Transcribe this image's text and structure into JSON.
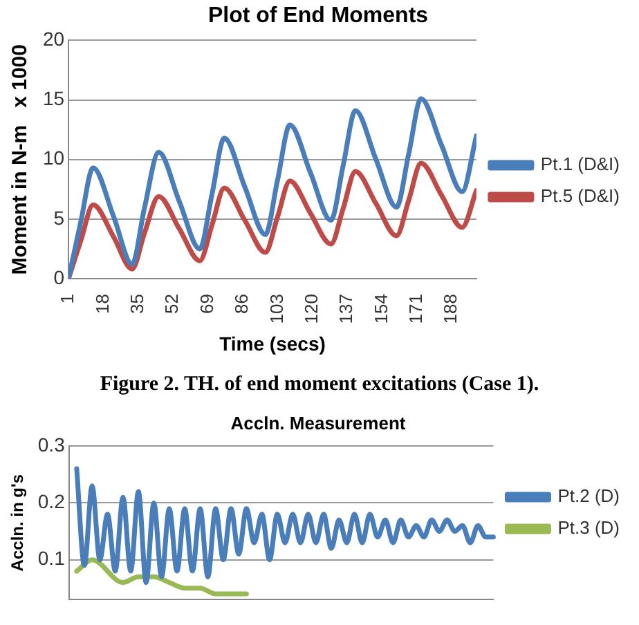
{
  "chart_data": [
    {
      "type": "line",
      "title": "Plot of End Moments",
      "xlabel": "Time (secs)",
      "ylabel": "Moment in N-m   x 1000",
      "x": [
        1,
        7,
        13,
        23,
        32,
        38,
        45,
        55,
        65,
        71,
        77,
        87,
        97,
        103,
        109,
        119,
        129,
        135,
        141,
        151,
        161,
        167,
        173,
        183,
        193,
        200
      ],
      "xlim": [
        1,
        200
      ],
      "xticks": [
        1,
        18,
        35,
        52,
        69,
        86,
        103,
        120,
        137,
        154,
        171,
        188
      ],
      "ylim": [
        0,
        20
      ],
      "yticks": [
        0,
        5,
        10,
        15,
        20
      ],
      "grid": "y",
      "legend": "right",
      "marker": "none",
      "line_style": "solid",
      "series": [
        {
          "name": "Pt.1 (D&I)",
          "color": "#4a7ebb",
          "values": [
            0,
            4.8,
            9.3,
            5.2,
            1.2,
            5.9,
            10.6,
            6.5,
            2.5,
            7.1,
            11.8,
            7.7,
            3.7,
            8.3,
            12.9,
            8.9,
            4.9,
            9.5,
            14.1,
            10.0,
            6.0,
            10.5,
            15.1,
            11.2,
            7.3,
            12.0
          ]
        },
        {
          "name": "Pt.5 (D&I)",
          "color": "#be4b48",
          "values": [
            0,
            3.2,
            6.2,
            3.5,
            0.8,
            3.8,
            6.9,
            4.2,
            1.5,
            4.5,
            7.6,
            4.9,
            2.2,
            5.2,
            8.2,
            5.5,
            2.9,
            5.9,
            9.0,
            6.3,
            3.6,
            6.6,
            9.7,
            7.0,
            4.3,
            7.4
          ]
        }
      ],
      "annotations": [
        "Figure 2. TH. of end moment excitations (Case 1)."
      ]
    },
    {
      "type": "line",
      "title": "Accln. Measurement",
      "ylabel": "Accln. in g's",
      "categories": [
        null,
        null,
        null,
        null,
        null,
        null,
        null,
        null,
        null,
        null,
        null,
        null,
        null,
        null,
        null,
        null,
        null,
        null,
        null,
        null,
        null,
        null,
        null,
        null,
        null,
        null,
        null,
        null,
        null,
        null,
        null,
        null,
        null,
        null,
        null,
        null,
        null,
        null,
        null,
        null,
        null,
        null,
        null,
        null,
        null,
        null,
        null,
        null,
        null,
        null,
        null,
        null,
        null,
        null,
        null,
        null
      ],
      "ylim": [
        0.03,
        0.3
      ],
      "yticks": [
        0.1,
        0.2,
        0.3
      ],
      "grid": "y",
      "legend": "right",
      "marker": "none",
      "line_style": "solid",
      "tick_labels": "y",
      "series": [
        {
          "name": "Pt.2 (D)",
          "color": "#4a7ebb",
          "values": [
            null,
            0.26,
            0.09,
            0.23,
            0.1,
            0.18,
            0.08,
            0.21,
            0.08,
            0.22,
            0.06,
            0.2,
            0.07,
            0.19,
            0.08,
            0.19,
            0.08,
            0.19,
            0.07,
            0.19,
            0.1,
            0.19,
            0.11,
            0.19,
            0.13,
            0.18,
            0.1,
            0.18,
            0.13,
            0.18,
            0.13,
            0.18,
            0.13,
            0.18,
            0.12,
            0.17,
            0.13,
            0.18,
            0.13,
            0.18,
            0.14,
            0.17,
            0.13,
            0.17,
            0.14,
            0.16,
            0.14,
            0.17,
            0.15,
            0.17,
            0.15,
            0.16,
            0.13,
            0.16,
            0.14,
            0.14
          ]
        },
        {
          "name": "Pt.3 (D)",
          "color": "#98b954",
          "values": [
            null,
            0.08,
            null,
            0.1,
            null,
            null,
            null,
            0.06,
            null,
            0.07,
            null,
            0.07,
            null,
            0.06,
            null,
            0.05,
            null,
            0.05,
            null,
            0.04,
            null,
            0.04,
            null,
            0.04,
            null,
            null,
            null,
            null,
            null,
            null,
            null,
            null,
            null,
            null,
            null,
            null,
            null,
            null,
            null,
            null,
            null,
            null,
            null,
            null,
            null,
            null,
            null,
            null,
            null,
            null,
            null,
            null,
            null,
            null,
            null,
            null
          ]
        }
      ]
    }
  ]
}
